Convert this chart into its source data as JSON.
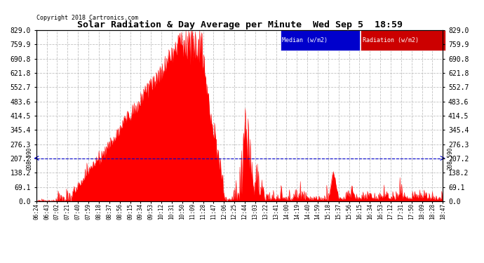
{
  "title": "Solar Radiation & Day Average per Minute  Wed Sep 5  18:59",
  "copyright": "Copyright 2018 Cartronics.com",
  "median_value": 208.59,
  "median_label": "208.590",
  "yticks": [
    0.0,
    69.1,
    138.2,
    207.2,
    276.3,
    345.4,
    414.5,
    483.6,
    552.7,
    621.8,
    690.8,
    759.9,
    829.0
  ],
  "ymax": 829.0,
  "ymin": 0.0,
  "bg_color": "#ffffff",
  "fill_color": "#ff0000",
  "median_line_color": "#0000cc",
  "grid_color": "#bbbbbb",
  "legend_median_bg": "#0000cc",
  "legend_radiation_bg": "#cc0000",
  "xtick_labels": [
    "06:24",
    "06:43",
    "07:02",
    "07:21",
    "07:40",
    "07:59",
    "08:18",
    "08:37",
    "08:56",
    "09:15",
    "09:34",
    "09:53",
    "10:12",
    "10:31",
    "10:50",
    "11:09",
    "11:28",
    "11:47",
    "12:06",
    "12:25",
    "12:44",
    "13:03",
    "13:22",
    "13:41",
    "14:00",
    "14:19",
    "14:40",
    "14:59",
    "15:18",
    "15:37",
    "15:56",
    "16:15",
    "16:34",
    "16:53",
    "17:12",
    "17:31",
    "17:50",
    "18:09",
    "18:28",
    "18:47"
  ],
  "n_points": 740
}
